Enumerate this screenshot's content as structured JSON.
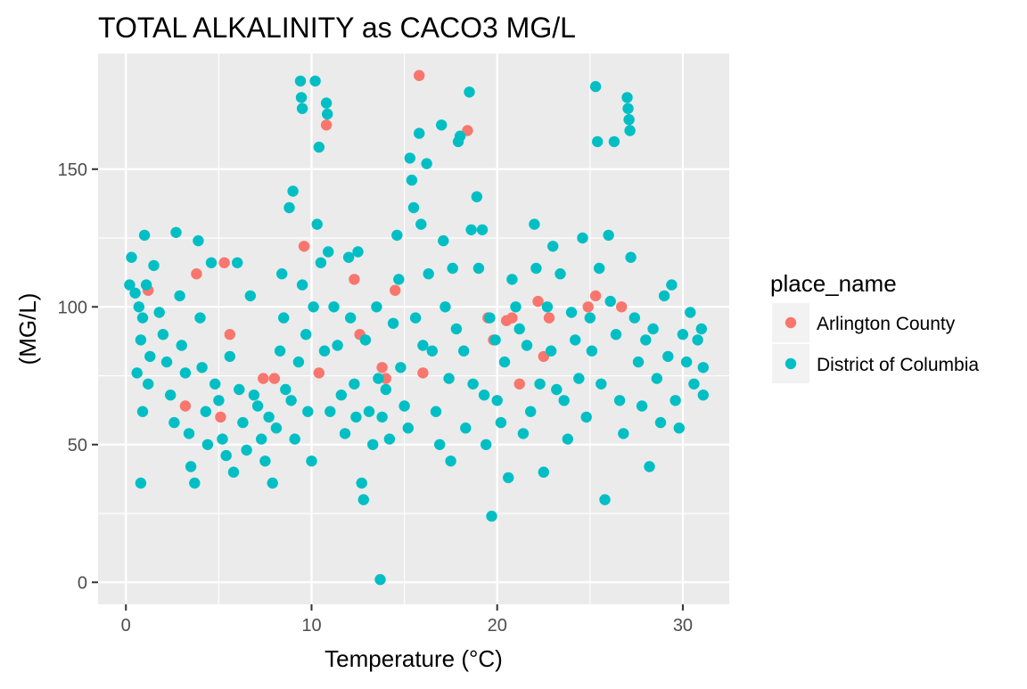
{
  "chart_data": {
    "type": "scatter",
    "title": "TOTAL ALKALINITY as CACO3 MG/L",
    "xlabel": "Temperature (°C)",
    "ylabel": "(MG/L)",
    "xlim": [
      -1.5,
      32.5
    ],
    "ylim": [
      -8,
      192
    ],
    "x_ticks": [
      0,
      10,
      20,
      30
    ],
    "y_ticks": [
      0,
      50,
      100,
      150
    ],
    "grid": true,
    "legend": {
      "title": "place_name",
      "position": "right",
      "entries": [
        {
          "label": "Arlington County",
          "color": "#F8766D"
        },
        {
          "label": "District of Columbia",
          "color": "#00BFC4"
        }
      ]
    },
    "series": [
      {
        "name": "Arlington County",
        "color": "#F8766D",
        "points": [
          [
            1.2,
            106
          ],
          [
            3.2,
            64
          ],
          [
            3.8,
            112
          ],
          [
            5.1,
            60
          ],
          [
            5.3,
            116
          ],
          [
            5.6,
            90
          ],
          [
            7.4,
            74
          ],
          [
            8.0,
            74
          ],
          [
            9.6,
            122
          ],
          [
            10.4,
            76
          ],
          [
            10.8,
            166
          ],
          [
            12.3,
            110
          ],
          [
            12.6,
            90
          ],
          [
            13.8,
            78
          ],
          [
            14.0,
            74
          ],
          [
            14.5,
            106
          ],
          [
            15.8,
            184
          ],
          [
            16.0,
            76
          ],
          [
            18.4,
            164
          ],
          [
            19.5,
            96
          ],
          [
            19.8,
            88
          ],
          [
            20.5,
            95
          ],
          [
            20.8,
            96
          ],
          [
            21.2,
            72
          ],
          [
            22.2,
            102
          ],
          [
            22.5,
            82
          ],
          [
            22.8,
            96
          ],
          [
            24.9,
            100
          ],
          [
            25.3,
            104
          ],
          [
            26.7,
            100
          ]
        ]
      },
      {
        "name": "District of Columbia",
        "color": "#00BFC4",
        "points": [
          [
            0.3,
            118
          ],
          [
            0.2,
            108
          ],
          [
            0.5,
            105
          ],
          [
            0.7,
            100
          ],
          [
            0.9,
            96
          ],
          [
            0.8,
            88
          ],
          [
            0.6,
            76
          ],
          [
            0.9,
            62
          ],
          [
            0.8,
            36
          ],
          [
            1.0,
            126
          ],
          [
            1.1,
            108
          ],
          [
            1.3,
            82
          ],
          [
            1.2,
            72
          ],
          [
            1.5,
            115
          ],
          [
            1.8,
            98
          ],
          [
            2.0,
            90
          ],
          [
            2.2,
            80
          ],
          [
            2.4,
            68
          ],
          [
            2.6,
            58
          ],
          [
            2.7,
            127
          ],
          [
            2.9,
            104
          ],
          [
            3.0,
            86
          ],
          [
            3.2,
            76
          ],
          [
            3.4,
            54
          ],
          [
            3.5,
            42
          ],
          [
            3.7,
            36
          ],
          [
            3.9,
            124
          ],
          [
            4.0,
            96
          ],
          [
            4.1,
            78
          ],
          [
            4.3,
            62
          ],
          [
            4.4,
            50
          ],
          [
            4.6,
            116
          ],
          [
            4.8,
            72
          ],
          [
            5.0,
            66
          ],
          [
            5.2,
            52
          ],
          [
            5.4,
            46
          ],
          [
            5.6,
            82
          ],
          [
            5.8,
            40
          ],
          [
            6.0,
            116
          ],
          [
            6.1,
            70
          ],
          [
            6.3,
            58
          ],
          [
            6.5,
            48
          ],
          [
            6.7,
            104
          ],
          [
            6.9,
            68
          ],
          [
            7.1,
            64
          ],
          [
            7.3,
            52
          ],
          [
            7.5,
            44
          ],
          [
            7.7,
            60
          ],
          [
            7.9,
            36
          ],
          [
            8.1,
            56
          ],
          [
            8.3,
            84
          ],
          [
            8.4,
            112
          ],
          [
            8.5,
            96
          ],
          [
            8.6,
            70
          ],
          [
            8.8,
            136
          ],
          [
            8.9,
            66
          ],
          [
            9.0,
            142
          ],
          [
            9.1,
            52
          ],
          [
            9.3,
            80
          ],
          [
            9.4,
            182
          ],
          [
            9.45,
            176
          ],
          [
            9.5,
            172
          ],
          [
            9.5,
            108
          ],
          [
            9.7,
            90
          ],
          [
            9.8,
            62
          ],
          [
            10.0,
            44
          ],
          [
            10.1,
            100
          ],
          [
            10.2,
            182
          ],
          [
            10.3,
            130
          ],
          [
            10.4,
            158
          ],
          [
            10.5,
            116
          ],
          [
            10.7,
            84
          ],
          [
            10.8,
            174
          ],
          [
            10.85,
            170
          ],
          [
            10.9,
            120
          ],
          [
            11.0,
            62
          ],
          [
            11.2,
            100
          ],
          [
            11.4,
            86
          ],
          [
            11.6,
            68
          ],
          [
            11.8,
            54
          ],
          [
            12.0,
            118
          ],
          [
            12.1,
            96
          ],
          [
            12.3,
            72
          ],
          [
            12.4,
            60
          ],
          [
            12.5,
            120
          ],
          [
            12.7,
            36
          ],
          [
            12.8,
            30
          ],
          [
            12.9,
            88
          ],
          [
            13.1,
            62
          ],
          [
            13.3,
            50
          ],
          [
            13.5,
            100
          ],
          [
            13.6,
            74
          ],
          [
            13.7,
            1
          ],
          [
            13.8,
            60
          ],
          [
            14.0,
            70
          ],
          [
            14.2,
            52
          ],
          [
            14.4,
            94
          ],
          [
            14.6,
            126
          ],
          [
            14.7,
            110
          ],
          [
            14.8,
            78
          ],
          [
            15.0,
            64
          ],
          [
            15.2,
            56
          ],
          [
            15.3,
            154
          ],
          [
            15.4,
            146
          ],
          [
            15.5,
            136
          ],
          [
            15.6,
            96
          ],
          [
            15.8,
            163
          ],
          [
            15.9,
            130
          ],
          [
            16.0,
            86
          ],
          [
            16.2,
            152
          ],
          [
            16.3,
            112
          ],
          [
            16.5,
            84
          ],
          [
            16.7,
            62
          ],
          [
            16.9,
            50
          ],
          [
            17.0,
            166
          ],
          [
            17.1,
            124
          ],
          [
            17.2,
            100
          ],
          [
            17.4,
            74
          ],
          [
            17.5,
            44
          ],
          [
            17.6,
            114
          ],
          [
            17.8,
            92
          ],
          [
            17.9,
            160
          ],
          [
            18.0,
            162
          ],
          [
            18.2,
            84
          ],
          [
            18.3,
            56
          ],
          [
            18.5,
            178
          ],
          [
            18.6,
            128
          ],
          [
            18.7,
            72
          ],
          [
            18.9,
            140
          ],
          [
            19.0,
            114
          ],
          [
            19.2,
            128
          ],
          [
            19.3,
            68
          ],
          [
            19.4,
            50
          ],
          [
            19.6,
            96
          ],
          [
            19.7,
            24
          ],
          [
            19.9,
            88
          ],
          [
            20.0,
            66
          ],
          [
            20.2,
            58
          ],
          [
            20.4,
            80
          ],
          [
            20.6,
            38
          ],
          [
            20.8,
            110
          ],
          [
            21.0,
            100
          ],
          [
            21.2,
            92
          ],
          [
            21.4,
            54
          ],
          [
            21.6,
            86
          ],
          [
            21.8,
            62
          ],
          [
            22.0,
            130
          ],
          [
            22.1,
            114
          ],
          [
            22.3,
            72
          ],
          [
            22.5,
            40
          ],
          [
            22.7,
            100
          ],
          [
            22.9,
            84
          ],
          [
            23.0,
            122
          ],
          [
            23.2,
            70
          ],
          [
            23.4,
            112
          ],
          [
            23.6,
            66
          ],
          [
            23.8,
            52
          ],
          [
            24.0,
            98
          ],
          [
            24.2,
            88
          ],
          [
            24.4,
            74
          ],
          [
            24.6,
            125
          ],
          [
            24.8,
            60
          ],
          [
            25.0,
            96
          ],
          [
            25.1,
            84
          ],
          [
            25.3,
            180
          ],
          [
            25.4,
            160
          ],
          [
            25.5,
            114
          ],
          [
            25.6,
            72
          ],
          [
            25.8,
            30
          ],
          [
            26.0,
            126
          ],
          [
            26.1,
            102
          ],
          [
            26.3,
            160
          ],
          [
            26.4,
            90
          ],
          [
            26.6,
            66
          ],
          [
            26.8,
            54
          ],
          [
            27.0,
            176
          ],
          [
            27.05,
            172
          ],
          [
            27.1,
            168
          ],
          [
            27.15,
            164
          ],
          [
            27.2,
            118
          ],
          [
            27.4,
            96
          ],
          [
            27.6,
            80
          ],
          [
            27.8,
            64
          ],
          [
            28.0,
            88
          ],
          [
            28.2,
            42
          ],
          [
            28.4,
            92
          ],
          [
            28.6,
            74
          ],
          [
            28.8,
            58
          ],
          [
            29.0,
            104
          ],
          [
            29.2,
            82
          ],
          [
            29.4,
            108
          ],
          [
            29.6,
            66
          ],
          [
            29.8,
            56
          ],
          [
            30.0,
            90
          ],
          [
            30.2,
            80
          ],
          [
            30.4,
            98
          ],
          [
            30.6,
            72
          ],
          [
            30.8,
            88
          ],
          [
            31.0,
            92
          ],
          [
            31.1,
            78
          ],
          [
            31.1,
            68
          ]
        ]
      }
    ]
  }
}
